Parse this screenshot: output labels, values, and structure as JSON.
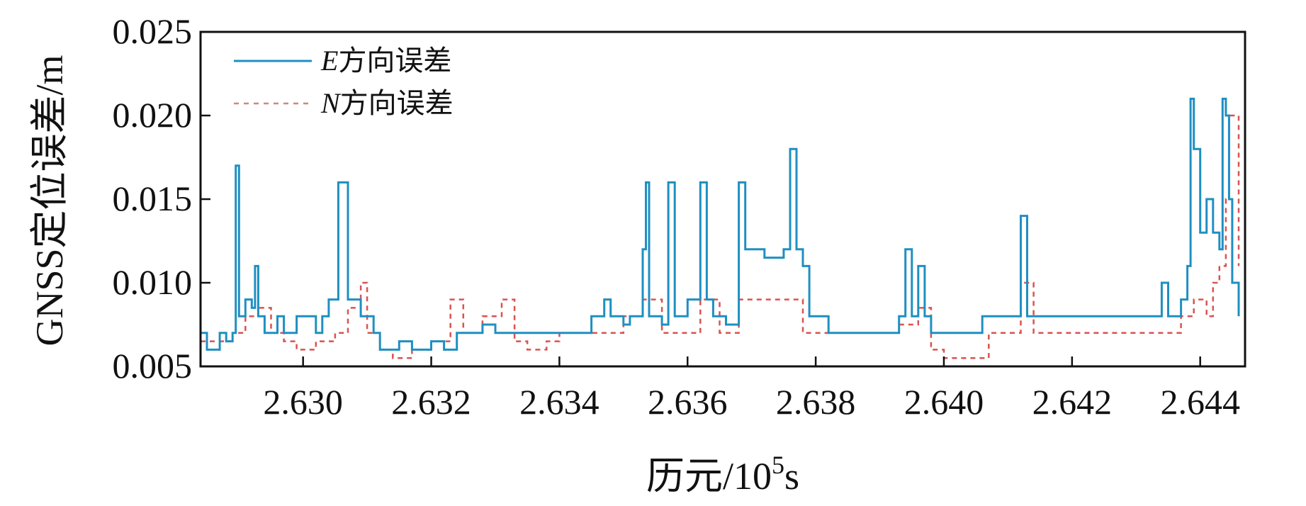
{
  "chart_data": {
    "type": "line",
    "title": "",
    "xlabel": "历元/10",
    "xlabel_sup": "5",
    "xlabel_tail": "s",
    "ylabel": "GNSS定位误差/m",
    "xlim": [
      2.6284,
      2.6447
    ],
    "ylim": [
      0.005,
      0.025
    ],
    "x_ticks": [
      2.63,
      2.632,
      2.634,
      2.636,
      2.638,
      2.64,
      2.642,
      2.644
    ],
    "x_tick_labels": [
      "2.630",
      "2.632",
      "2.634",
      "2.636",
      "2.638",
      "2.640",
      "2.642",
      "2.644"
    ],
    "y_ticks": [
      0.005,
      0.01,
      0.015,
      0.02,
      0.025
    ],
    "y_tick_labels": [
      "0.005",
      "0.010",
      "0.015",
      "0.020",
      "0.025"
    ],
    "grid": false,
    "legend_position": "top-left",
    "series": [
      {
        "name_prefix": "E",
        "name_suffix": "方向误差",
        "color": "#1f8fc1",
        "style": "solid",
        "points": [
          [
            2.6284,
            0.007
          ],
          [
            2.6285,
            0.006
          ],
          [
            2.6287,
            0.007
          ],
          [
            2.6288,
            0.0065
          ],
          [
            2.6289,
            0.007
          ],
          [
            2.62895,
            0.017
          ],
          [
            2.629,
            0.008
          ],
          [
            2.6291,
            0.009
          ],
          [
            2.6292,
            0.0085
          ],
          [
            2.62925,
            0.011
          ],
          [
            2.6293,
            0.008
          ],
          [
            2.6294,
            0.007
          ],
          [
            2.6296,
            0.008
          ],
          [
            2.6297,
            0.007
          ],
          [
            2.6299,
            0.008
          ],
          [
            2.6302,
            0.007
          ],
          [
            2.6303,
            0.008
          ],
          [
            2.6304,
            0.009
          ],
          [
            2.63055,
            0.016
          ],
          [
            2.6307,
            0.009
          ],
          [
            2.6309,
            0.008
          ],
          [
            2.6311,
            0.007
          ],
          [
            2.6312,
            0.006
          ],
          [
            2.6315,
            0.0065
          ],
          [
            2.6317,
            0.006
          ],
          [
            2.632,
            0.0065
          ],
          [
            2.6322,
            0.006
          ],
          [
            2.6324,
            0.007
          ],
          [
            2.6326,
            0.007
          ],
          [
            2.6328,
            0.0075
          ],
          [
            2.633,
            0.007
          ],
          [
            2.6335,
            0.007
          ],
          [
            2.634,
            0.007
          ],
          [
            2.6345,
            0.008
          ],
          [
            2.6347,
            0.009
          ],
          [
            2.6348,
            0.008
          ],
          [
            2.635,
            0.0075
          ],
          [
            2.6351,
            0.008
          ],
          [
            2.6353,
            0.012
          ],
          [
            2.63535,
            0.016
          ],
          [
            2.6354,
            0.008
          ],
          [
            2.6356,
            0.0075
          ],
          [
            2.6357,
            0.016
          ],
          [
            2.6358,
            0.008
          ],
          [
            2.636,
            0.009
          ],
          [
            2.6362,
            0.016
          ],
          [
            2.6363,
            0.009
          ],
          [
            2.6364,
            0.008
          ],
          [
            2.6366,
            0.0075
          ],
          [
            2.6368,
            0.016
          ],
          [
            2.6369,
            0.012
          ],
          [
            2.6372,
            0.0115
          ],
          [
            2.6375,
            0.012
          ],
          [
            2.6376,
            0.018
          ],
          [
            2.6377,
            0.012
          ],
          [
            2.6378,
            0.011
          ],
          [
            2.6379,
            0.008
          ],
          [
            2.6382,
            0.007
          ],
          [
            2.6386,
            0.007
          ],
          [
            2.639,
            0.007
          ],
          [
            2.6393,
            0.008
          ],
          [
            2.6394,
            0.012
          ],
          [
            2.6395,
            0.008
          ],
          [
            2.6396,
            0.011
          ],
          [
            2.6397,
            0.008
          ],
          [
            2.6398,
            0.007
          ],
          [
            2.6402,
            0.007
          ],
          [
            2.6406,
            0.008
          ],
          [
            2.641,
            0.008
          ],
          [
            2.6412,
            0.014
          ],
          [
            2.6413,
            0.008
          ],
          [
            2.6416,
            0.008
          ],
          [
            2.642,
            0.008
          ],
          [
            2.6425,
            0.008
          ],
          [
            2.6429,
            0.008
          ],
          [
            2.6433,
            0.008
          ],
          [
            2.6434,
            0.01
          ],
          [
            2.6435,
            0.008
          ],
          [
            2.6437,
            0.009
          ],
          [
            2.6438,
            0.011
          ],
          [
            2.64385,
            0.021
          ],
          [
            2.6439,
            0.018
          ],
          [
            2.644,
            0.013
          ],
          [
            2.6441,
            0.015
          ],
          [
            2.6442,
            0.013
          ],
          [
            2.6443,
            0.012
          ],
          [
            2.64435,
            0.021
          ],
          [
            2.6444,
            0.02
          ],
          [
            2.64445,
            0.015
          ],
          [
            2.6445,
            0.01
          ],
          [
            2.6446,
            0.008
          ]
        ]
      },
      {
        "name_prefix": "N",
        "name_suffix": "方向误差",
        "color": "#d9534f",
        "style": "dashed",
        "points": [
          [
            2.6284,
            0.0065
          ],
          [
            2.6287,
            0.0065
          ],
          [
            2.6289,
            0.007
          ],
          [
            2.6291,
            0.008
          ],
          [
            2.6293,
            0.0085
          ],
          [
            2.6295,
            0.007
          ],
          [
            2.6297,
            0.0065
          ],
          [
            2.6299,
            0.006
          ],
          [
            2.6302,
            0.0065
          ],
          [
            2.6305,
            0.007
          ],
          [
            2.6307,
            0.0085
          ],
          [
            2.6309,
            0.01
          ],
          [
            2.631,
            0.007
          ],
          [
            2.6312,
            0.006
          ],
          [
            2.6314,
            0.0055
          ],
          [
            2.6317,
            0.006
          ],
          [
            2.632,
            0.0065
          ],
          [
            2.6323,
            0.009
          ],
          [
            2.6325,
            0.007
          ],
          [
            2.6328,
            0.008
          ],
          [
            2.6331,
            0.009
          ],
          [
            2.6333,
            0.0065
          ],
          [
            2.6335,
            0.006
          ],
          [
            2.6338,
            0.0065
          ],
          [
            2.634,
            0.007
          ],
          [
            2.6344,
            0.007
          ],
          [
            2.6347,
            0.007
          ],
          [
            2.635,
            0.008
          ],
          [
            2.6353,
            0.009
          ],
          [
            2.6356,
            0.007
          ],
          [
            2.6359,
            0.007
          ],
          [
            2.6362,
            0.009
          ],
          [
            2.6365,
            0.007
          ],
          [
            2.6368,
            0.009
          ],
          [
            2.6372,
            0.009
          ],
          [
            2.6376,
            0.009
          ],
          [
            2.6378,
            0.007
          ],
          [
            2.6382,
            0.007
          ],
          [
            2.6386,
            0.007
          ],
          [
            2.639,
            0.007
          ],
          [
            2.6393,
            0.0075
          ],
          [
            2.6396,
            0.0085
          ],
          [
            2.6398,
            0.006
          ],
          [
            2.64,
            0.0055
          ],
          [
            2.6405,
            0.0055
          ],
          [
            2.6407,
            0.007
          ],
          [
            2.641,
            0.007
          ],
          [
            2.6412,
            0.01
          ],
          [
            2.6414,
            0.007
          ],
          [
            2.6418,
            0.007
          ],
          [
            2.6424,
            0.007
          ],
          [
            2.643,
            0.007
          ],
          [
            2.6434,
            0.007
          ],
          [
            2.6437,
            0.008
          ],
          [
            2.6439,
            0.009
          ],
          [
            2.6441,
            0.008
          ],
          [
            2.6442,
            0.01
          ],
          [
            2.6443,
            0.011
          ],
          [
            2.6444,
            0.015
          ],
          [
            2.64445,
            0.02
          ],
          [
            2.6446,
            0.011
          ]
        ]
      }
    ]
  }
}
